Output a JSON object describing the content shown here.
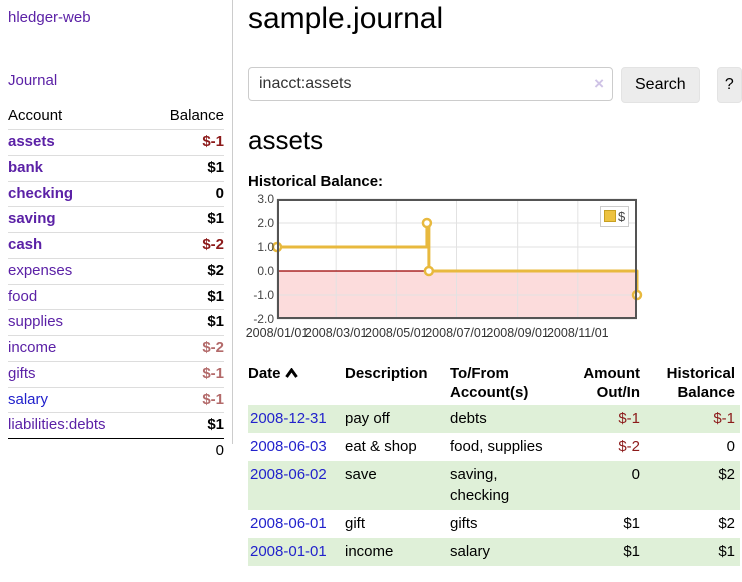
{
  "colors": {
    "purple": "#5b21a6",
    "link_blue": "#2222cc",
    "neg": "#8c1a1a",
    "neg_soft": "#b36a6a",
    "stripe": "#dff0d8",
    "gold": "#e8b93e",
    "gold_border": "#c7a022",
    "pink": "#fcdcdc",
    "zero_line": "#990000",
    "frame": "#545454",
    "grid": "#e2e2e2",
    "divider": "#cccccc"
  },
  "sidebar": {
    "brand": "hledger-web",
    "nav": {
      "journal": "Journal"
    },
    "accounts_table": {
      "headers": {
        "account": "Account",
        "balance": "Balance"
      },
      "rows": [
        {
          "name": "assets",
          "balance": "$-1"
        },
        {
          "name": "bank",
          "balance": "$1"
        },
        {
          "name": "checking",
          "balance": "0"
        },
        {
          "name": "saving",
          "balance": "$1"
        },
        {
          "name": "cash",
          "balance": "$-2"
        },
        {
          "name": "expenses",
          "balance": "$2"
        },
        {
          "name": "food",
          "balance": "$1"
        },
        {
          "name": "supplies",
          "balance": "$1"
        },
        {
          "name": "income",
          "balance": "$-2"
        },
        {
          "name": "gifts",
          "balance": "$-1"
        },
        {
          "name": "salary",
          "balance": "$-1"
        },
        {
          "name": "liabilities:debts",
          "balance": "$1"
        }
      ],
      "total": "0"
    }
  },
  "header": {
    "title": "sample.journal"
  },
  "search": {
    "query": "inacct:assets",
    "clear_icon": "×",
    "search_label": "Search",
    "help_label": "?"
  },
  "account_page": {
    "heading": "assets",
    "chart_label": "Historical Balance:"
  },
  "chart_data": {
    "type": "line",
    "title": "Historical Balance",
    "step": true,
    "x": [
      "2008-01-01",
      "2008-06-01",
      "2008-06-03",
      "2008-12-31"
    ],
    "series": [
      {
        "name": "$",
        "values": [
          1,
          2,
          0,
          -1
        ]
      }
    ],
    "legend": [
      {
        "label": "$",
        "color": "#edc240"
      }
    ],
    "x_range": [
      "2008-01-01",
      "2008-12-31"
    ],
    "ylim": [
      -2,
      3
    ],
    "y_ticks": [
      "3.0",
      "2.0",
      "1.0",
      "0.0",
      "-1.0",
      "-2.0"
    ],
    "x_ticks": [
      "2008/01/01",
      "2008/03/01",
      "2008/05/01",
      "2008/07/01",
      "2008/09/01",
      "2008/11/01"
    ],
    "grid": true,
    "legend_position": "top-right",
    "negative_region_shaded": true
  },
  "register": {
    "headers": {
      "date": "Date",
      "description": "Description",
      "account_line1": "To/From",
      "account_line2": "Account(s)",
      "amount_line1": "Amount",
      "amount_line2": "Out/In",
      "balance_line1": "Historical",
      "balance_line2": "Balance"
    },
    "rows": [
      {
        "date": "2008-12-31",
        "description": "pay off",
        "accounts": "debts",
        "amount": "$-1",
        "balance": "$-1"
      },
      {
        "date": "2008-06-03",
        "description": "eat & shop",
        "accounts": "food, supplies",
        "amount": "$-2",
        "balance": "0"
      },
      {
        "date": "2008-06-02",
        "description": "save",
        "accounts": "saving, checking",
        "amount": "0",
        "balance": "$2"
      },
      {
        "date": "2008-06-01",
        "description": "gift",
        "accounts": "gifts",
        "amount": "$1",
        "balance": "$2"
      },
      {
        "date": "2008-01-01",
        "description": "income",
        "accounts": "salary",
        "amount": "$1",
        "balance": "$1"
      }
    ]
  }
}
